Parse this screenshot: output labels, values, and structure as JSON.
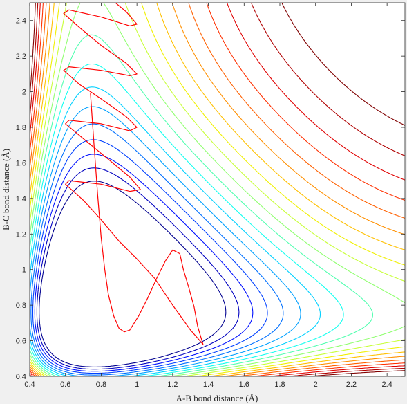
{
  "chart_data": {
    "type": "contour",
    "title": "",
    "xlabel": "A-B bond distance (Å)",
    "ylabel": "B-C bond distance (Å)",
    "xlim": [
      0.4,
      2.5
    ],
    "ylim": [
      0.4,
      2.5
    ],
    "x_ticks": [
      0.4,
      0.6,
      0.8,
      1,
      1.2,
      1.4,
      1.6,
      1.8,
      2,
      2.2,
      2.4
    ],
    "y_ticks": [
      0.4,
      0.6,
      0.8,
      1,
      1.2,
      1.4,
      1.6,
      1.8,
      2,
      2.2,
      2.4
    ],
    "x_tick_labels": [
      "0.4",
      "0.6",
      "0.8",
      "1",
      "1.2",
      "1.4",
      "1.6",
      "1.8",
      "2",
      "2.2",
      "2.4"
    ],
    "y_tick_labels": [
      "0.4",
      "0.6",
      "0.8",
      "1",
      "1.2",
      "1.4",
      "1.6",
      "1.8",
      "2",
      "2.2",
      "2.4"
    ],
    "grid": false,
    "legend": "none",
    "background": "#ffffff",
    "figure_background": "#f0f0f0",
    "contour_colors": [
      "#00008f",
      "#0000c0",
      "#0010ff",
      "#0040ff",
      "#0070ff",
      "#00a0ff",
      "#00d0ff",
      "#10ffef",
      "#50ffaf",
      "#90ff70",
      "#c8ff38",
      "#f0f000",
      "#ffc000",
      "#ff9000",
      "#ff6000",
      "#ff3000",
      "#e00000",
      "#b00000",
      "#800000"
    ],
    "trajectory": {
      "color": "#ff0000",
      "points": [
        [
          0.74,
          1.99
        ],
        [
          0.76,
          1.7
        ],
        [
          0.78,
          1.42
        ],
        [
          0.8,
          1.18
        ],
        [
          0.82,
          1.0
        ],
        [
          0.84,
          0.86
        ],
        [
          0.87,
          0.74
        ],
        [
          0.9,
          0.67
        ],
        [
          0.93,
          0.65
        ],
        [
          0.96,
          0.66
        ],
        [
          1.01,
          0.74
        ],
        [
          1.06,
          0.84
        ],
        [
          1.11,
          0.95
        ],
        [
          1.16,
          1.05
        ],
        [
          1.2,
          1.11
        ],
        [
          1.24,
          1.09
        ],
        [
          1.26,
          1.0
        ],
        [
          1.29,
          0.9
        ],
        [
          1.32,
          0.79
        ],
        [
          1.34,
          0.68
        ],
        [
          1.37,
          0.58
        ],
        [
          1.3,
          0.66
        ],
        [
          1.2,
          0.8
        ],
        [
          1.1,
          0.95
        ],
        [
          1.0,
          1.06
        ],
        [
          0.9,
          1.16
        ],
        [
          0.8,
          1.28
        ],
        [
          0.7,
          1.39
        ],
        [
          0.6,
          1.48
        ],
        [
          0.62,
          1.5
        ],
        [
          0.8,
          1.48
        ],
        [
          0.96,
          1.44
        ],
        [
          1.02,
          1.45
        ],
        [
          0.96,
          1.52
        ],
        [
          0.84,
          1.62
        ],
        [
          0.72,
          1.72
        ],
        [
          0.6,
          1.82
        ],
        [
          0.62,
          1.84
        ],
        [
          0.8,
          1.82
        ],
        [
          0.96,
          1.78
        ],
        [
          1.0,
          1.8
        ],
        [
          0.94,
          1.86
        ],
        [
          0.8,
          1.96
        ],
        [
          0.68,
          2.04
        ],
        [
          0.59,
          2.12
        ],
        [
          0.62,
          2.14
        ],
        [
          0.8,
          2.12
        ],
        [
          0.96,
          2.09
        ],
        [
          1.0,
          2.1
        ],
        [
          0.94,
          2.16
        ],
        [
          0.8,
          2.26
        ],
        [
          0.68,
          2.36
        ],
        [
          0.59,
          2.44
        ],
        [
          0.62,
          2.46
        ],
        [
          0.8,
          2.42
        ],
        [
          0.96,
          2.37
        ],
        [
          1.0,
          2.38
        ],
        [
          0.94,
          2.45
        ],
        [
          0.88,
          2.5
        ]
      ]
    }
  }
}
